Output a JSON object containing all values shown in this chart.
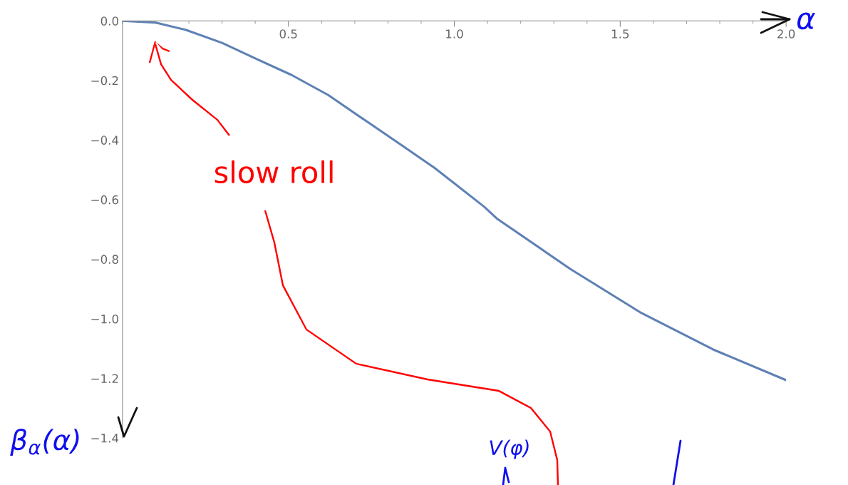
{
  "chart_data": {
    "type": "line",
    "xlabel": "α",
    "ylabel": "β$_{α}$(α)",
    "x": [
      0,
      0.1,
      0.19,
      0.3,
      0.4,
      0.51,
      0.62,
      0.73,
      0.83,
      0.94,
      1.09,
      1.13,
      1.35,
      1.56,
      1.78,
      2.0
    ],
    "series": [
      {
        "color": "#5e81b5",
        "values": [
          0,
          -0.006,
          -0.03,
          -0.074,
          -0.126,
          -0.182,
          -0.249,
          -0.333,
          -0.409,
          -0.493,
          -0.624,
          -0.665,
          -0.833,
          -0.978,
          -1.103,
          -1.206
        ]
      }
    ],
    "xlim": [
      0,
      2.0
    ],
    "ylim": [
      -1.4,
      0.0
    ],
    "xticks": [
      0.5,
      {
        "value": 1,
        "label": "1.0"
      },
      1.5,
      {
        "value": 2,
        "label": "2.0"
      }
    ],
    "yticks": [
      {
        "value": 0,
        "label": "0.0"
      },
      {
        "value": -0.2,
        "label": "−0.2"
      },
      {
        "value": -0.4,
        "label": "−0.4"
      },
      {
        "value": -0.6,
        "label": "−0.6"
      },
      {
        "value": -0.8,
        "label": "−0.8"
      },
      {
        "value": -1.0,
        "label": "−1.0"
      },
      {
        "value": -1.2,
        "label": "−1.2"
      },
      {
        "value": -1.4,
        "label": "−1.4"
      }
    ],
    "grid": false,
    "legend": false,
    "annotations": [
      "slow roll",
      "V(φ)"
    ]
  }
}
